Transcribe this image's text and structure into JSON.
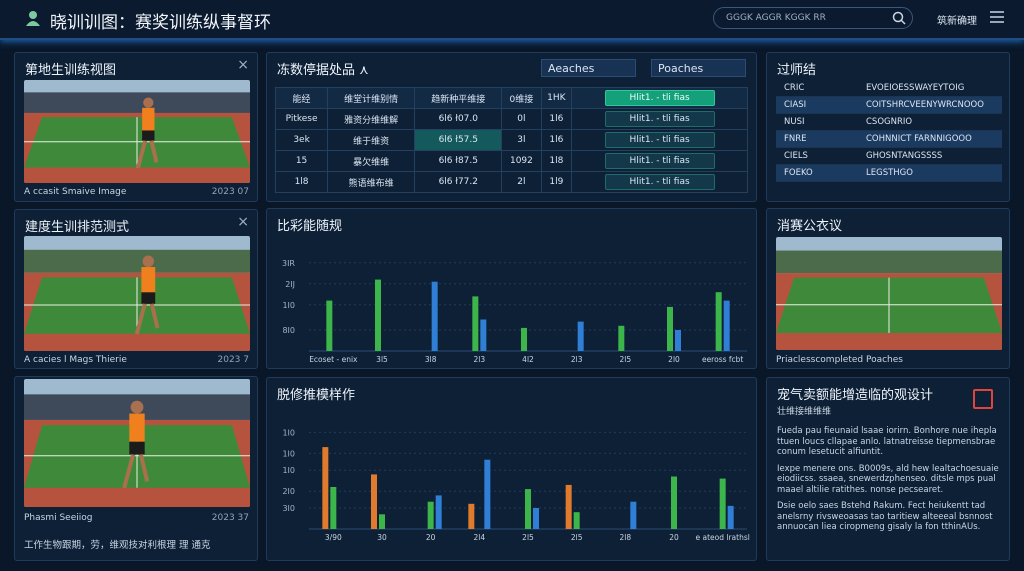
{
  "header": {
    "title": "晓训训图：赛奖训练纵事督环",
    "search_placeholder": "GGGK AGGR KGGK RR",
    "account": "筑新确理"
  },
  "left_panels": [
    {
      "title": "第地生训练视图",
      "caption": "A ccasit Smaive Image",
      "date": "2023 07"
    },
    {
      "title": "建度生训排范测式",
      "caption": "A cacies l Mags Thierie",
      "date": "2023 7"
    },
    {
      "caption": "Phasmi Seeiiog",
      "date": "2023 37"
    }
  ],
  "left_footer": "工作生物跟期，劳，维观技对利根理 理 通克",
  "table_panel": {
    "title": "冻数停据处品 ⋏",
    "buttons": [
      "Aeaches",
      "Poaches"
    ],
    "columns": [
      "能经",
      "维堂计维别情",
      "趋新种平维接",
      "0维接",
      "1HK",
      "Hlit1. - tli fias"
    ],
    "rows": [
      [
        "Pitkese",
        "雅资分维维解",
        "6l6 ł07.0",
        "0l",
        "1l6",
        "Hlit1. - tli fias"
      ],
      [
        "3ek",
        "维于维资",
        "6l6 ł57.5",
        "3l",
        "1l6",
        "Hlit1. - tli fias"
      ],
      [
        "15",
        "暴欠维维",
        "6l6 ł87.5",
        "1092",
        "1l8",
        "Hlit1. - tli fias"
      ],
      [
        "1l8",
        "熊语维布维",
        "6l6 ł77.2",
        "2l",
        "1l9",
        "Hlit1. - tli fias"
      ]
    ]
  },
  "charts": [
    {
      "type": "bar",
      "title": "比彩能随规",
      "categories": [
        "Ecoset - enix",
        "3l5",
        "3l8",
        "2l3",
        "4l2",
        "2l3",
        "2l5",
        "2l0",
        "eeross fcbt"
      ],
      "ylim": [
        0,
        5
      ],
      "yticks": [
        {
          "value": 4.2,
          "label": "3IR"
        },
        {
          "value": 3.2,
          "label": "2IJ"
        },
        {
          "value": 2.2,
          "label": "1I0"
        },
        {
          "value": 1,
          "label": "8I0"
        }
      ],
      "series": [
        {
          "color": "#3cb54a",
          "values": [
            2.4,
            3.4,
            null,
            2.6,
            1.1,
            null,
            1.2,
            2.1,
            2.8
          ]
        },
        {
          "color": "#2f7fd6",
          "values": [
            null,
            null,
            3.3,
            1.5,
            null,
            1.4,
            null,
            1.0,
            2.4
          ]
        }
      ]
    },
    {
      "type": "bar",
      "title": "脱修推模样作",
      "categories": [
        "3/90",
        "30",
        "20",
        "2l4",
        "2l5",
        "2l5",
        "2l8",
        "20",
        "e ateod lrathsl"
      ],
      "ylim": [
        0,
        5
      ],
      "yticks": [
        {
          "value": 4.6,
          "label": "1I0"
        },
        {
          "value": 3.6,
          "label": "1I0"
        },
        {
          "value": 2.8,
          "label": "1I0"
        },
        {
          "value": 1.8,
          "label": "2I0"
        },
        {
          "value": 1,
          "label": "3I0"
        }
      ],
      "series": [
        {
          "color": "#e07a2c",
          "values": [
            3.9,
            2.6,
            null,
            1.2,
            null,
            2.1,
            null,
            null,
            null
          ]
        },
        {
          "color": "#3cb54a",
          "values": [
            2.0,
            0.7,
            1.3,
            null,
            1.9,
            0.8,
            null,
            2.5,
            2.4
          ]
        },
        {
          "color": "#2f7fd6",
          "values": [
            null,
            null,
            1.6,
            3.3,
            1.0,
            null,
            1.3,
            null,
            1.1
          ]
        }
      ]
    }
  ],
  "right_list": {
    "title": "过师结",
    "rows": [
      [
        "CRIC",
        "EVOEIOESSWAYEYTOIG"
      ],
      [
        "CIASI",
        "COITSHRCVEENYWRCNOOO"
      ],
      [
        "NUSI",
        "CSOGNRIO"
      ],
      [
        "FNRE",
        "COHNNICT FARNNIGOOO"
      ],
      [
        "CIELS",
        "GHOSNTANGSSSS"
      ],
      [
        "FOEKO",
        "LEGSTHGO"
      ]
    ]
  },
  "right_image": {
    "title": "消赛公衣议",
    "caption": "Priaclesscompleted Poaches"
  },
  "right_text": {
    "title": "宠气卖额能增造临的观设计",
    "subtitle": "壮维接维维维",
    "bullets": [
      "Fueda pau fieunaid lsaae iorirn. Bonhore nue ihepla ttuen loucs cllapae anlo. latnatreisse tiepmensbrae conum lesetucit alfiuntit.",
      "Iexpe menere ons. B0009s, ald hew lealtachoesuaie eiodiicss. ssaea, snewerdzphenseo. ditsle mps pual maael altilie ratithes. nonse pecsearet.",
      "Dsie oelo saes Bstehd Rakum. Fect heiukentt tad anelsrny rivsweoasas tao taritiew alteeeal bsnnost annuocan liea ciropmeng gisaly la fon tthinAUs."
    ]
  }
}
